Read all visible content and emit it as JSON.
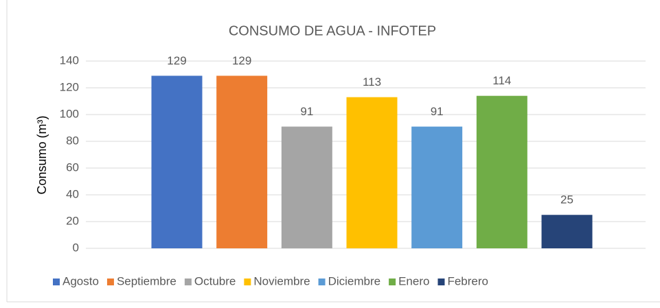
{
  "chart_data": {
    "type": "bar",
    "title": "CONSUMO  DE AGUA - INFOTEP",
    "y_label": "Consumo (m³)",
    "categories": [
      null
    ],
    "series": [
      {
        "name": "Agosto",
        "color": "#4472c4",
        "values": [
          129
        ]
      },
      {
        "name": "Septiembre",
        "color": "#ed7d31",
        "values": [
          129
        ]
      },
      {
        "name": "Octubre",
        "color": "#a5a5a5",
        "values": [
          91
        ]
      },
      {
        "name": "Noviembre",
        "color": "#ffc000",
        "values": [
          113
        ]
      },
      {
        "name": "Diciembre",
        "color": "#5b9bd5",
        "values": [
          91
        ]
      },
      {
        "name": "Enero",
        "color": "#70ad47",
        "values": [
          114
        ]
      },
      {
        "name": "Febrero",
        "color": "#264478",
        "values": [
          25
        ]
      }
    ],
    "ylim": [
      0,
      140
    ],
    "yticks": [
      0,
      20,
      40,
      60,
      80,
      100,
      120,
      140
    ],
    "grid": true,
    "legend": "bottom"
  }
}
